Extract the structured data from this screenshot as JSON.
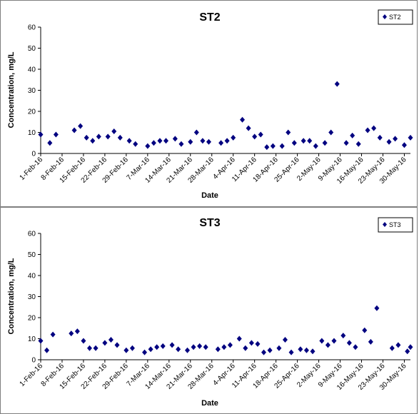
{
  "charts": [
    {
      "title": "ST2",
      "xlabel": "Date",
      "ylabel": "Concentration, mg/L",
      "legend": "ST2"
    },
    {
      "title": "ST3",
      "xlabel": "Date",
      "ylabel": "Concentration, mg/L",
      "legend": "ST3"
    }
  ],
  "chart_data": [
    {
      "type": "scatter",
      "title": "ST2",
      "xlabel": "Date",
      "ylabel": "Concentration, mg/L",
      "ylim": [
        0,
        60
      ],
      "yticks": [
        0,
        10,
        20,
        30,
        40,
        50,
        60
      ],
      "xlim": [
        "2016-02-01",
        "2016-06-01"
      ],
      "xticks": [
        "1-Feb-16",
        "8-Feb-16",
        "15-Feb-16",
        "22-Feb-16",
        "29-Feb-16",
        "7-Mar-16",
        "14-Mar-16",
        "21-Mar-16",
        "28-Mar-16",
        "4-Apr-16",
        "11-Apr-16",
        "18-Apr-16",
        "25-Apr-16",
        "2-May-16",
        "9-May-16",
        "16-May-16",
        "23-May-16",
        "30-May-16"
      ],
      "grid": false,
      "legend_position": "top-right",
      "marker_color": "#000080",
      "series": [
        {
          "name": "ST2",
          "x": [
            "2016-02-01",
            "2016-02-04",
            "2016-02-06",
            "2016-02-12",
            "2016-02-14",
            "2016-02-16",
            "2016-02-18",
            "2016-02-20",
            "2016-02-23",
            "2016-02-25",
            "2016-02-27",
            "2016-03-01",
            "2016-03-03",
            "2016-03-07",
            "2016-03-09",
            "2016-03-11",
            "2016-03-13",
            "2016-03-16",
            "2016-03-18",
            "2016-03-21",
            "2016-03-23",
            "2016-03-25",
            "2016-03-27",
            "2016-03-31",
            "2016-04-02",
            "2016-04-04",
            "2016-04-07",
            "2016-04-09",
            "2016-04-11",
            "2016-04-13",
            "2016-04-15",
            "2016-04-17",
            "2016-04-20",
            "2016-04-22",
            "2016-04-24",
            "2016-04-27",
            "2016-04-29",
            "2016-05-01",
            "2016-05-04",
            "2016-05-06",
            "2016-05-08",
            "2016-05-11",
            "2016-05-13",
            "2016-05-15",
            "2016-05-18",
            "2016-05-20",
            "2016-05-22",
            "2016-05-25",
            "2016-05-27",
            "2016-05-30",
            "2016-06-01"
          ],
          "y": [
            9,
            5,
            9,
            11,
            13,
            7.5,
            6,
            8,
            8,
            10.5,
            7.5,
            6,
            4.5,
            3.5,
            5,
            6,
            6,
            7,
            4.5,
            5.5,
            10,
            6,
            5.5,
            5,
            6,
            7.5,
            16,
            12,
            8,
            9,
            3,
            3.5,
            3.5,
            10,
            5,
            6,
            6,
            3.5,
            5,
            10,
            33,
            5,
            8.5,
            4.5,
            11,
            12,
            7.5,
            5.5,
            7,
            4,
            7.5
          ]
        }
      ]
    },
    {
      "type": "scatter",
      "title": "ST3",
      "xlabel": "Date",
      "ylabel": "Concentration, mg/L",
      "ylim": [
        0,
        60
      ],
      "yticks": [
        0,
        10,
        20,
        30,
        40,
        50,
        60
      ],
      "xlim": [
        "2016-02-01",
        "2016-06-01"
      ],
      "xticks": [
        "1-Feb-16",
        "8-Feb-16",
        "15-Feb-16",
        "22-Feb-16",
        "29-Feb-16",
        "7-Mar-16",
        "14-Mar-16",
        "21-Mar-16",
        "28-Mar-16",
        "4-Apr-16",
        "11-Apr-16",
        "18-Apr-16",
        "25-Apr-16",
        "2-May-16",
        "9-May-16",
        "16-May-16",
        "23-May-16",
        "30-May-16"
      ],
      "grid": false,
      "legend_position": "top-right",
      "marker_color": "#000080",
      "series": [
        {
          "name": "ST3",
          "x": [
            "2016-02-01",
            "2016-02-03",
            "2016-02-05",
            "2016-02-11",
            "2016-02-13",
            "2016-02-15",
            "2016-02-17",
            "2016-02-19",
            "2016-02-22",
            "2016-02-24",
            "2016-02-26",
            "2016-02-29",
            "2016-03-02",
            "2016-03-06",
            "2016-03-08",
            "2016-03-10",
            "2016-03-12",
            "2016-03-15",
            "2016-03-17",
            "2016-03-20",
            "2016-03-22",
            "2016-03-24",
            "2016-03-26",
            "2016-03-30",
            "2016-04-01",
            "2016-04-03",
            "2016-04-06",
            "2016-04-08",
            "2016-04-10",
            "2016-04-12",
            "2016-04-14",
            "2016-04-16",
            "2016-04-19",
            "2016-04-21",
            "2016-04-23",
            "2016-04-26",
            "2016-04-28",
            "2016-04-30",
            "2016-05-03",
            "2016-05-05",
            "2016-05-07",
            "2016-05-10",
            "2016-05-12",
            "2016-05-14",
            "2016-05-17",
            "2016-05-19",
            "2016-05-21",
            "2016-05-26",
            "2016-05-28",
            "2016-05-31",
            "2016-06-01"
          ],
          "y": [
            9,
            4.5,
            12,
            12.5,
            13.5,
            9,
            5.5,
            5.5,
            8,
            9.5,
            7,
            4.5,
            5.5,
            3.5,
            5,
            6,
            6.5,
            7,
            5,
            4.5,
            6,
            6.5,
            6,
            5,
            6,
            7,
            10,
            5.5,
            8,
            7.5,
            3.5,
            4.5,
            5.5,
            9.5,
            3.5,
            5,
            4.5,
            4,
            9,
            7,
            9,
            11.5,
            8,
            6,
            14,
            8.5,
            24.5,
            5.5,
            7,
            4,
            6
          ]
        }
      ]
    }
  ]
}
